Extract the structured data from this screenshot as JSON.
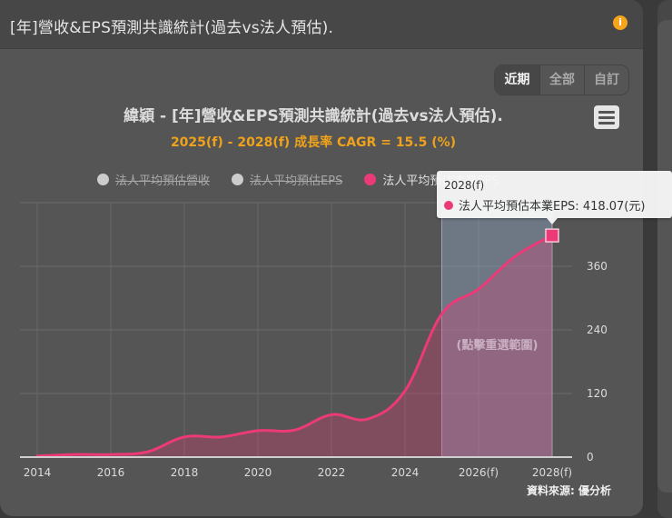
{
  "card": {
    "title": "[年]營收&EPS預測共識統計(過去vs法人預估).",
    "info_icon": "info-icon"
  },
  "range_buttons": [
    {
      "label": "近期",
      "active": true
    },
    {
      "label": "全部",
      "active": false
    },
    {
      "label": "自訂",
      "active": false
    }
  ],
  "menu_icon": "hamburger-menu-icon",
  "chart": {
    "title": "緯穎 - [年]營收&EPS預測共識統計(過去vs法人預估).",
    "subtitle": "2025(f) - 2028(f) 成長率 CAGR = 15.5 (%)",
    "reset_zoom_label": "(點擊重選範圍)",
    "source": "資料來源: 優分析",
    "tooltip": {
      "header": "2028(f)",
      "series": "法人平均預估本業EPS",
      "value_text": "法人平均預估本業EPS: 418.07(元)"
    },
    "colors": {
      "eps_line": "#ec3a78",
      "hidden_legend": "#cccccc",
      "subtitle": "#f0a31a",
      "forecast_band": "#8fa3c0"
    }
  },
  "chart_data": {
    "type": "area",
    "title": "緯穎 - [年]營收&EPS預測共識統計(過去vs法人預估).",
    "subtitle": "2025(f) - 2028(f) 成長率 CAGR = 15.5 (%)",
    "xlabel": "",
    "ylabel": "",
    "categories": [
      "2014",
      "2015",
      "2016",
      "2017",
      "2018",
      "2019",
      "2020",
      "2021",
      "2022",
      "2023",
      "2024",
      "2025(f)",
      "2026(f)",
      "2027(f)",
      "2028(f)"
    ],
    "x_tick_labels": [
      "2014",
      "2016",
      "2018",
      "2020",
      "2022",
      "2024",
      "2026(f)",
      "2028(f)"
    ],
    "y_tick_labels": [
      "0",
      "120",
      "240",
      "360"
    ],
    "ylim": [
      0,
      480
    ],
    "y_axis_position": "right",
    "grid": true,
    "legend": [
      {
        "name": "法人平均預估營收",
        "visible": false
      },
      {
        "name": "法人平均預估EPS",
        "visible": false
      },
      {
        "name": "法人平均預估本業EPS",
        "visible": true
      }
    ],
    "legend_position": "top",
    "series": [
      {
        "name": "法人平均預估本業EPS",
        "unit": "元",
        "values": [
          2,
          5,
          5,
          10,
          38,
          38,
          50,
          51,
          80,
          72,
          125,
          270,
          317,
          379,
          418.07
        ]
      }
    ],
    "highlighted_range": [
      "2025(f)",
      "2028(f)"
    ],
    "annotations": [
      "(點擊重選範圍)",
      "資料來源: 優分析"
    ]
  }
}
